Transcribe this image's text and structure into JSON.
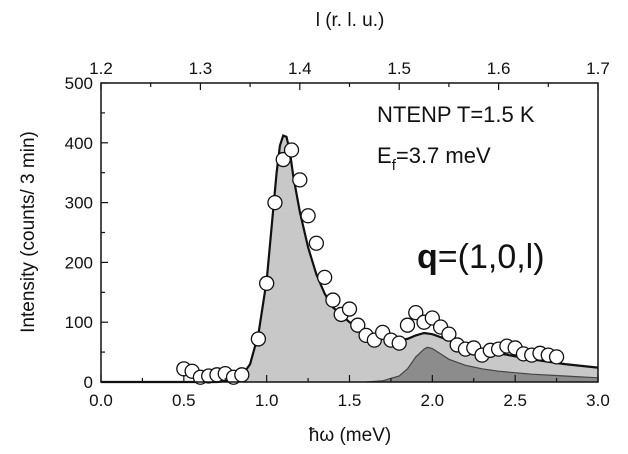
{
  "chart_data": {
    "type": "scatter",
    "title": "",
    "xlabel": "ħω (meV)",
    "ylabel": "Intensity (counts/ 3 min)",
    "top_xlabel": "l (r. l. u.)",
    "xlim": [
      0.0,
      3.0
    ],
    "ylim": [
      0,
      500
    ],
    "top_xlim": [
      1.2,
      1.7
    ],
    "x_ticks": [
      "0.0",
      "0.5",
      "1.0",
      "1.5",
      "2.0",
      "2.5",
      "3.0"
    ],
    "y_ticks": [
      "0",
      "100",
      "200",
      "300",
      "400",
      "500"
    ],
    "top_x_ticks": [
      "1.2",
      "1.3",
      "1.4",
      "1.5",
      "1.6",
      "1.7"
    ],
    "grid": false,
    "legend": "none",
    "annotations": {
      "line1": "NTENP T=1.5 K",
      "ef_main": "E",
      "ef_sub": "f",
      "ef_rest": "=3.7 meV",
      "q_bold": "q",
      "q_rest": "=(1,0,l)"
    },
    "colors": {
      "total_fill": "#c8c8c8",
      "second_fill": "#8c8c8c",
      "curve": "#111111",
      "markers": "#ffffff"
    },
    "series": [
      {
        "name": "",
        "kind": "data_points",
        "x": [
          0.5,
          0.55,
          0.6,
          0.65,
          0.7,
          0.75,
          0.8,
          0.85,
          0.95,
          1.0,
          1.05,
          1.1,
          1.15,
          1.2,
          1.25,
          1.3,
          1.35,
          1.4,
          1.45,
          1.5,
          1.55,
          1.6,
          1.65,
          1.7,
          1.75,
          1.8,
          1.85,
          1.9,
          1.95,
          2.0,
          2.05,
          2.1,
          2.15,
          2.2,
          2.25,
          2.3,
          2.35,
          2.4,
          2.45,
          2.5,
          2.55,
          2.6,
          2.65,
          2.7,
          2.75
        ],
        "y": [
          22,
          18,
          8,
          10,
          12,
          14,
          8,
          12,
          72,
          165,
          300,
          372,
          388,
          338,
          278,
          232,
          175,
          137,
          113,
          122,
          95,
          78,
          70,
          83,
          70,
          65,
          95,
          116,
          100,
          107,
          92,
          80,
          62,
          55,
          57,
          45,
          53,
          55,
          60,
          57,
          47,
          45,
          48,
          45,
          42
        ],
        "yerr": 6
      },
      {
        "name": "",
        "kind": "fit_total",
        "x": [
          0.0,
          0.5,
          0.6,
          0.7,
          0.8,
          0.85,
          0.9,
          0.95,
          1.0,
          1.02,
          1.04,
          1.06,
          1.08,
          1.1,
          1.12,
          1.14,
          1.16,
          1.2,
          1.25,
          1.3,
          1.35,
          1.4,
          1.5,
          1.6,
          1.7,
          1.8,
          1.85,
          1.9,
          1.95,
          2.0,
          2.1,
          2.2,
          2.4,
          2.6,
          2.8,
          3.0
        ],
        "y": [
          0,
          0,
          0,
          0,
          3,
          10,
          30,
          80,
          170,
          230,
          290,
          350,
          395,
          412,
          410,
          385,
          345,
          285,
          225,
          180,
          148,
          125,
          100,
          85,
          75,
          70,
          72,
          78,
          82,
          80,
          70,
          60,
          48,
          38,
          30,
          24
        ]
      },
      {
        "name": "",
        "kind": "fit_second_peak",
        "x": [
          1.6,
          1.7,
          1.8,
          1.85,
          1.9,
          1.95,
          1.97,
          2.0,
          2.05,
          2.1,
          2.2,
          2.3,
          2.4,
          2.6,
          2.8,
          3.0
        ],
        "y": [
          0,
          2,
          10,
          22,
          42,
          55,
          58,
          56,
          47,
          38,
          28,
          22,
          18,
          13,
          10,
          7
        ]
      }
    ]
  }
}
